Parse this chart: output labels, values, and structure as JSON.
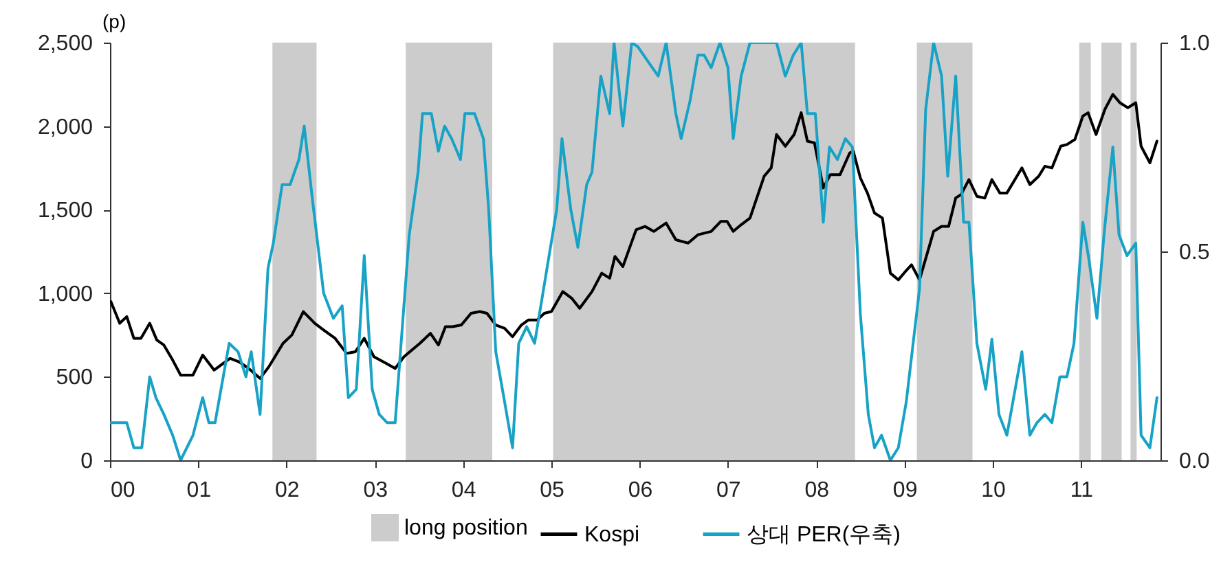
{
  "chart_data": {
    "type": "line",
    "ylabel": "(p)",
    "xlim": [
      2000,
      2011.9
    ],
    "xticks": [
      {
        "value": 2000,
        "label": "00"
      },
      {
        "value": 2001,
        "label": "01"
      },
      {
        "value": 2002,
        "label": "02"
      },
      {
        "value": 2003,
        "label": "03"
      },
      {
        "value": 2004,
        "label": "04"
      },
      {
        "value": 2005,
        "label": "05"
      },
      {
        "value": 2006,
        "label": "06"
      },
      {
        "value": 2007,
        "label": "07"
      },
      {
        "value": 2008,
        "label": "08"
      },
      {
        "value": 2009,
        "label": "09"
      },
      {
        "value": 2010,
        "label": "10"
      },
      {
        "value": 2011,
        "label": "11"
      }
    ],
    "ylim": [
      0,
      2500
    ],
    "yticks": [
      0,
      500,
      {
        "value": 1000,
        "label": "1,000"
      },
      {
        "value": 1500,
        "label": "1,500"
      },
      {
        "value": 2000,
        "label": "2,000"
      },
      {
        "value": 2500,
        "label": "2,500"
      }
    ],
    "y2lim": [
      0,
      1
    ],
    "y2ticks": [
      {
        "value": 0,
        "label": "0.0"
      },
      {
        "value": 0.5,
        "label": "0.5"
      },
      {
        "value": 1,
        "label": "1.0"
      }
    ],
    "bands": [
      {
        "axis": "x",
        "from": 2001.84,
        "to": 2002.34,
        "label": "long position",
        "color": "#cccccc"
      },
      {
        "axis": "x",
        "from": 2003.35,
        "to": 2004.33,
        "color": "#cccccc"
      },
      {
        "axis": "x",
        "from": 2005.02,
        "to": 2008.44,
        "color": "#cccccc"
      },
      {
        "axis": "x",
        "from": 2009.14,
        "to": 2009.77,
        "color": "#cccccc"
      },
      {
        "axis": "x",
        "from": 2010.98,
        "to": 2011.11,
        "color": "#cccccc"
      },
      {
        "axis": "x",
        "from": 2011.23,
        "to": 2011.46,
        "color": "#cccccc"
      },
      {
        "axis": "x",
        "from": 2011.56,
        "to": 2011.63,
        "color": "#cccccc"
      }
    ],
    "series": [
      {
        "name": "Kospi",
        "color": "#000000",
        "x": [
          2000.01,
          2000.11,
          2000.19,
          2000.27,
          2000.35,
          2000.45,
          2000.53,
          2000.61,
          2000.71,
          2000.8,
          2000.94,
          2001.05,
          2001.18,
          2001.36,
          2001.46,
          2001.57,
          2001.7,
          2001.8,
          2001.96,
          2002.06,
          2002.19,
          2002.32,
          2002.42,
          2002.55,
          2002.68,
          2002.78,
          2002.88,
          2002.99,
          2003.13,
          2003.23,
          2003.33,
          2003.51,
          2003.63,
          2003.72,
          2003.8,
          2003.88,
          2003.98,
          2004.09,
          2004.19,
          2004.27,
          2004.37,
          2004.47,
          2004.56,
          2004.66,
          2004.74,
          2004.84,
          2004.92,
          2005.0,
          2005.13,
          2005.23,
          2005.32,
          2005.46,
          2005.57,
          2005.66,
          2005.72,
          2005.81,
          2005.96,
          2006.06,
          2006.16,
          2006.3,
          2006.41,
          2006.55,
          2006.66,
          2006.81,
          2006.92,
          2006.99,
          2007.06,
          2007.15,
          2007.25,
          2007.41,
          2007.49,
          2007.55,
          2007.65,
          2007.75,
          2007.83,
          2007.9,
          2007.98,
          2008.08,
          2008.16,
          2008.27,
          2008.38,
          2008.42,
          2008.5,
          2008.58,
          2008.66,
          2008.75,
          2008.84,
          2008.93,
          2009.01,
          2009.08,
          2009.17,
          2009.33,
          2009.42,
          2009.5,
          2009.58,
          2009.64,
          2009.73,
          2009.82,
          2009.91,
          2009.99,
          2010.08,
          2010.16,
          2010.33,
          2010.42,
          2010.52,
          2010.59,
          2010.67,
          2010.77,
          2010.84,
          2010.93,
          2011.02,
          2011.08,
          2011.17,
          2011.27,
          2011.36,
          2011.44,
          2011.53,
          2011.62,
          2011.68,
          2011.78,
          2011.86
        ],
        "values": [
          950,
          820,
          860,
          730,
          730,
          820,
          720,
          690,
          600,
          510,
          510,
          630,
          540,
          610,
          590,
          550,
          490,
          560,
          700,
          750,
          890,
          820,
          780,
          730,
          640,
          650,
          730,
          620,
          580,
          550,
          620,
          700,
          760,
          690,
          800,
          800,
          810,
          880,
          890,
          880,
          810,
          790,
          740,
          810,
          840,
          840,
          880,
          890,
          1010,
          970,
          910,
          1010,
          1120,
          1090,
          1220,
          1160,
          1380,
          1400,
          1370,
          1420,
          1320,
          1300,
          1350,
          1370,
          1430,
          1430,
          1370,
          1410,
          1450,
          1700,
          1750,
          1950,
          1880,
          1950,
          2080,
          1910,
          1900,
          1630,
          1710,
          1710,
          1840,
          1850,
          1690,
          1600,
          1480,
          1450,
          1120,
          1080,
          1130,
          1170,
          1080,
          1370,
          1400,
          1400,
          1570,
          1590,
          1680,
          1580,
          1570,
          1680,
          1600,
          1600,
          1750,
          1650,
          1700,
          1760,
          1750,
          1880,
          1890,
          1920,
          2060,
          2080,
          1950,
          2100,
          2190,
          2140,
          2110,
          2140,
          1880,
          1780,
          1910
        ]
      },
      {
        "name": "상대 PER(우축)",
        "color": "#17a2c6",
        "axis": "y2",
        "x": [
          2000.01,
          2000.19,
          2000.27,
          2000.36,
          2000.45,
          2000.52,
          2000.61,
          2000.71,
          2000.8,
          2000.94,
          2001.05,
          2001.12,
          2001.19,
          2001.35,
          2001.45,
          2001.54,
          2001.6,
          2001.7,
          2001.79,
          2001.85,
          2001.95,
          2002.04,
          2002.14,
          2002.2,
          2002.29,
          2002.42,
          2002.53,
          2002.63,
          2002.7,
          2002.79,
          2002.88,
          2002.97,
          2003.05,
          2003.14,
          2003.23,
          2003.39,
          2003.49,
          2003.54,
          2003.64,
          2003.72,
          2003.79,
          2003.87,
          2003.97,
          2004.02,
          2004.13,
          2004.23,
          2004.29,
          2004.37,
          2004.47,
          2004.56,
          2004.63,
          2004.72,
          2004.81,
          2005.06,
          2005.12,
          2005.22,
          2005.3,
          2005.4,
          2005.46,
          2005.56,
          2005.66,
          2005.71,
          2005.81,
          2005.91,
          2005.98,
          2006.11,
          2006.21,
          2006.3,
          2006.41,
          2006.47,
          2006.57,
          2006.66,
          2006.73,
          2006.81,
          2006.91,
          2007.0,
          2007.06,
          2007.15,
          2007.25,
          2007.55,
          2007.65,
          2007.74,
          2007.83,
          2007.9,
          2007.99,
          2008.08,
          2008.15,
          2008.24,
          2008.33,
          2008.41,
          2008.5,
          2008.59,
          2008.66,
          2008.74,
          2008.84,
          2008.93,
          2009.02,
          2009.17,
          2009.24,
          2009.33,
          2009.42,
          2009.49,
          2009.58,
          2009.67,
          2009.73,
          2009.82,
          2009.92,
          2009.99,
          2010.07,
          2010.16,
          2010.33,
          2010.42,
          2010.5,
          2010.59,
          2010.67,
          2010.76,
          2010.84,
          2010.92,
          2011.02,
          2011.09,
          2011.18,
          2011.26,
          2011.36,
          2011.43,
          2011.52,
          2011.62,
          2011.68,
          2011.78,
          2011.86
        ],
        "values": [
          0.09,
          0.09,
          0.03,
          0.03,
          0.2,
          0.15,
          0.11,
          0.06,
          0.0,
          0.06,
          0.15,
          0.09,
          0.09,
          0.28,
          0.26,
          0.2,
          0.26,
          0.11,
          0.46,
          0.52,
          0.66,
          0.66,
          0.72,
          0.8,
          0.63,
          0.4,
          0.34,
          0.37,
          0.15,
          0.17,
          0.49,
          0.17,
          0.11,
          0.09,
          0.09,
          0.54,
          0.69,
          0.83,
          0.83,
          0.74,
          0.8,
          0.77,
          0.72,
          0.83,
          0.83,
          0.77,
          0.6,
          0.26,
          0.14,
          0.03,
          0.28,
          0.32,
          0.28,
          0.6,
          0.77,
          0.6,
          0.51,
          0.66,
          0.69,
          0.92,
          0.83,
          1.0,
          0.8,
          1.0,
          0.99,
          0.95,
          0.92,
          1.0,
          0.83,
          0.77,
          0.86,
          0.97,
          0.97,
          0.94,
          1.0,
          0.94,
          0.77,
          0.92,
          1.0,
          1.0,
          0.92,
          0.97,
          1.0,
          0.83,
          0.83,
          0.57,
          0.75,
          0.72,
          0.77,
          0.75,
          0.35,
          0.11,
          0.03,
          0.06,
          0.0,
          0.03,
          0.14,
          0.41,
          0.84,
          1.0,
          0.92,
          0.68,
          0.92,
          0.57,
          0.57,
          0.28,
          0.17,
          0.29,
          0.11,
          0.06,
          0.26,
          0.06,
          0.09,
          0.11,
          0.09,
          0.2,
          0.2,
          0.28,
          0.57,
          0.48,
          0.34,
          0.54,
          0.75,
          0.54,
          0.49,
          0.52,
          0.06,
          0.03,
          0.15
        ]
      }
    ],
    "legend": "bottom",
    "grid": false
  }
}
